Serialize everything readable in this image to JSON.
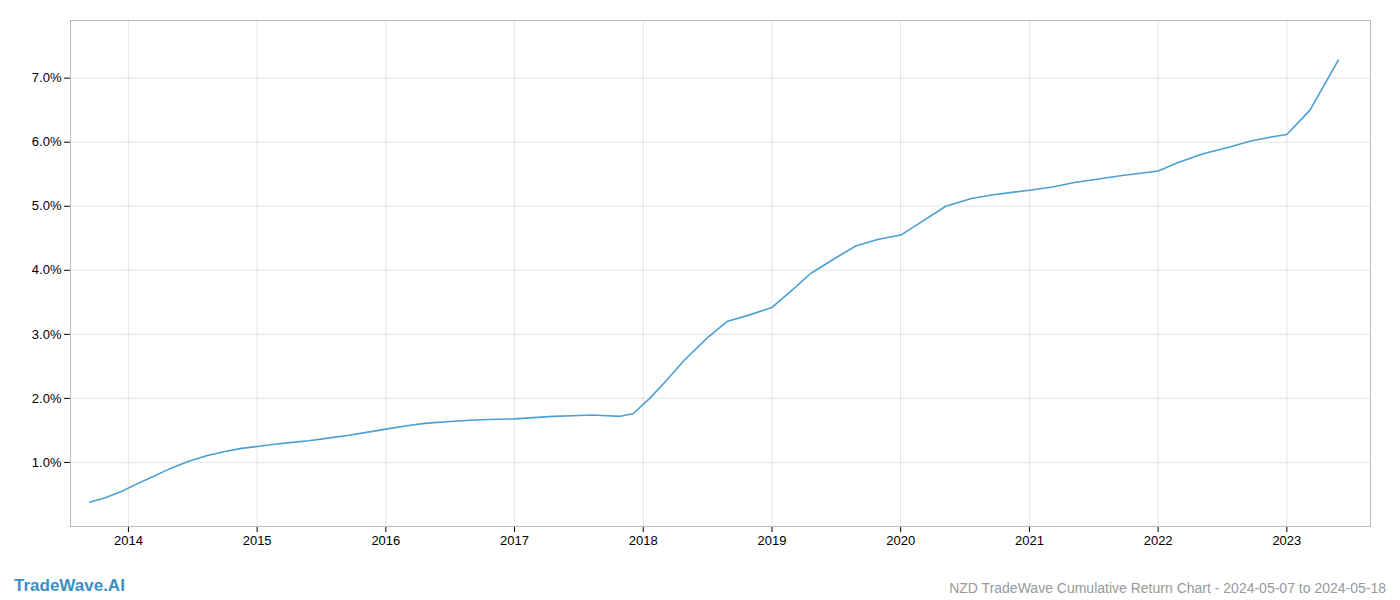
{
  "chart_data": {
    "type": "line",
    "title": "NZD TradeWave Cumulative Return Chart - 2024-05-07 to 2024-05-18",
    "annotations": [
      "TradeWave.AI"
    ],
    "x": [
      2013.7,
      2013.82,
      2013.95,
      2014.05,
      2014.18,
      2014.32,
      2014.47,
      2014.6,
      2014.75,
      2014.88,
      2015.0,
      2015.12,
      2015.25,
      2015.4,
      2015.55,
      2015.7,
      2015.85,
      2016.0,
      2016.15,
      2016.3,
      2016.5,
      2016.65,
      2016.8,
      2017.0,
      2017.15,
      2017.3,
      2017.45,
      2017.6,
      2017.72,
      2017.82,
      2017.92,
      2018.05,
      2018.18,
      2018.32,
      2018.5,
      2018.65,
      2018.82,
      2019.0,
      2019.15,
      2019.3,
      2019.5,
      2019.65,
      2019.82,
      2020.0,
      2020.18,
      2020.35,
      2020.55,
      2020.72,
      2020.88,
      2021.0,
      2021.18,
      2021.35,
      2021.55,
      2021.72,
      2021.88,
      2022.0,
      2022.15,
      2022.35,
      2022.55,
      2022.72,
      2022.88,
      2023.0,
      2023.18,
      2023.4
    ],
    "values": [
      0.38,
      0.45,
      0.55,
      0.65,
      0.77,
      0.9,
      1.02,
      1.1,
      1.17,
      1.22,
      1.25,
      1.28,
      1.31,
      1.34,
      1.38,
      1.42,
      1.47,
      1.52,
      1.57,
      1.61,
      1.64,
      1.66,
      1.67,
      1.68,
      1.7,
      1.72,
      1.73,
      1.74,
      1.73,
      1.72,
      1.76,
      2.0,
      2.28,
      2.6,
      2.95,
      3.2,
      3.3,
      3.42,
      3.68,
      3.95,
      4.2,
      4.38,
      4.48,
      4.55,
      4.78,
      5.0,
      5.12,
      5.18,
      5.22,
      5.25,
      5.3,
      5.37,
      5.43,
      5.48,
      5.52,
      5.55,
      5.68,
      5.82,
      5.92,
      6.02,
      6.08,
      6.12,
      6.5,
      7.28
    ],
    "color": "#4a9fd4",
    "xlim": [
      2013.55,
      2023.65
    ],
    "xticks": [
      2014,
      2015,
      2016,
      2017,
      2018,
      2019,
      2020,
      2021,
      2022,
      2023
    ],
    "ylim": [
      0.0,
      7.9
    ],
    "yticks": [
      {
        "value": 1.0,
        "label": "1.0%"
      },
      {
        "value": 2.0,
        "label": "2.0%"
      },
      {
        "value": 3.0,
        "label": "3.0%"
      },
      {
        "value": 4.0,
        "label": "4.0%"
      },
      {
        "value": 5.0,
        "label": "5.0%"
      },
      {
        "value": 6.0,
        "label": "6.0%"
      },
      {
        "value": 7.0,
        "label": "7.0%"
      }
    ],
    "grid": true
  }
}
